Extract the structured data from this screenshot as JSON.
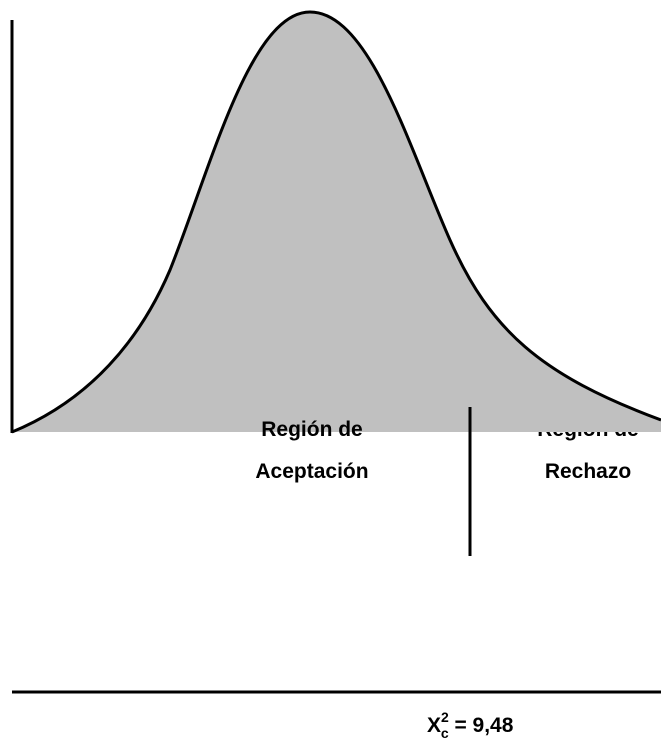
{
  "regions": {
    "acceptance": {
      "line1": "Región de",
      "line2": "Aceptación"
    },
    "rejection": {
      "line1": "Región de",
      "line2": "Rechazo"
    }
  },
  "critical_value": {
    "base": "X",
    "sup": "2",
    "sub": "c",
    "rest": " = 9,48"
  }
}
